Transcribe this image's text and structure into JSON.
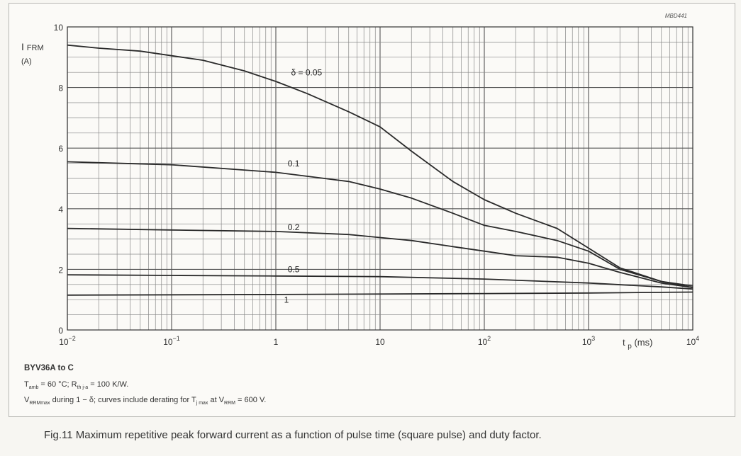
{
  "chart_data": {
    "type": "line",
    "x_scale": "log",
    "xlim": [
      0.01,
      10000
    ],
    "ylim": [
      0,
      10
    ],
    "x_ticks": [
      {
        "value": 0.01,
        "base": "10",
        "exp": "−2"
      },
      {
        "value": 0.1,
        "base": "10",
        "exp": "−1"
      },
      {
        "value": 1,
        "base": "1",
        "exp": ""
      },
      {
        "value": 10,
        "base": "10",
        "exp": ""
      },
      {
        "value": 100,
        "base": "10",
        "exp": "2"
      },
      {
        "value": 1000,
        "base": "10",
        "exp": "3"
      },
      {
        "value": 10000,
        "base": "10",
        "exp": "4"
      }
    ],
    "y_ticks": [
      0,
      2,
      4,
      6,
      8,
      10
    ],
    "ylabel_main": "I",
    "ylabel_sub": "FRM",
    "ylabel_unit": "(A)",
    "xlabel_main": "t",
    "xlabel_sub": "p",
    "xlabel_unit": "(ms)",
    "reference": "MBD441",
    "grid": true,
    "series": [
      {
        "name": "δ = 0.05",
        "label_at": [
          1.4,
          8.4
        ],
        "x": [
          0.01,
          0.02,
          0.05,
          0.1,
          0.2,
          0.5,
          1,
          2,
          5,
          10,
          20,
          50,
          100,
          200,
          500,
          1000,
          2000,
          5000,
          10000
        ],
        "y": [
          9.4,
          9.3,
          9.2,
          9.05,
          8.9,
          8.55,
          8.2,
          7.8,
          7.2,
          6.7,
          5.9,
          4.9,
          4.3,
          3.85,
          3.35,
          2.7,
          2.05,
          1.6,
          1.45
        ]
      },
      {
        "name": "0.1",
        "label_at": [
          1.3,
          5.4
        ],
        "x": [
          0.01,
          0.1,
          1,
          5,
          10,
          20,
          50,
          100,
          200,
          500,
          1000,
          2000,
          5000,
          10000
        ],
        "y": [
          5.55,
          5.45,
          5.2,
          4.9,
          4.65,
          4.35,
          3.85,
          3.45,
          3.25,
          2.95,
          2.6,
          2.0,
          1.6,
          1.4
        ]
      },
      {
        "name": "0.2",
        "label_at": [
          1.3,
          3.3
        ],
        "x": [
          0.01,
          0.1,
          1,
          5,
          10,
          20,
          50,
          100,
          200,
          500,
          1000,
          2000,
          5000,
          10000
        ],
        "y": [
          3.35,
          3.3,
          3.25,
          3.15,
          3.05,
          2.95,
          2.75,
          2.6,
          2.45,
          2.4,
          2.2,
          1.9,
          1.55,
          1.4
        ]
      },
      {
        "name": "0.5",
        "label_at": [
          1.3,
          1.9
        ],
        "x": [
          0.01,
          0.1,
          1,
          10,
          100,
          1000,
          5000,
          10000
        ],
        "y": [
          1.82,
          1.8,
          1.78,
          1.76,
          1.68,
          1.55,
          1.42,
          1.35
        ]
      },
      {
        "name": "1",
        "label_at": [
          1.2,
          0.9
        ],
        "x": [
          0.01,
          1,
          100,
          1000,
          10000
        ],
        "y": [
          1.15,
          1.17,
          1.2,
          1.22,
          1.25
        ]
      }
    ]
  },
  "device": "BYV36A to C",
  "conditions": {
    "line1": {
      "t": "T",
      "t_sub": "amb",
      "t_val": " = 60 °C; R",
      "r_sub": "th j-a",
      "r_val": " = 100 K/W."
    },
    "line2": {
      "v": "V",
      "v_sub": "RRMmax",
      "text1": " during 1 − δ; curves include derating for T",
      "tj_sub": "j max",
      "text2": " at V",
      "vrrm_sub": "RRM",
      "text3": " = 600 V."
    }
  },
  "caption": "Fig.11  Maximum repetitive peak forward current as a function of pulse time (square pulse) and duty factor."
}
